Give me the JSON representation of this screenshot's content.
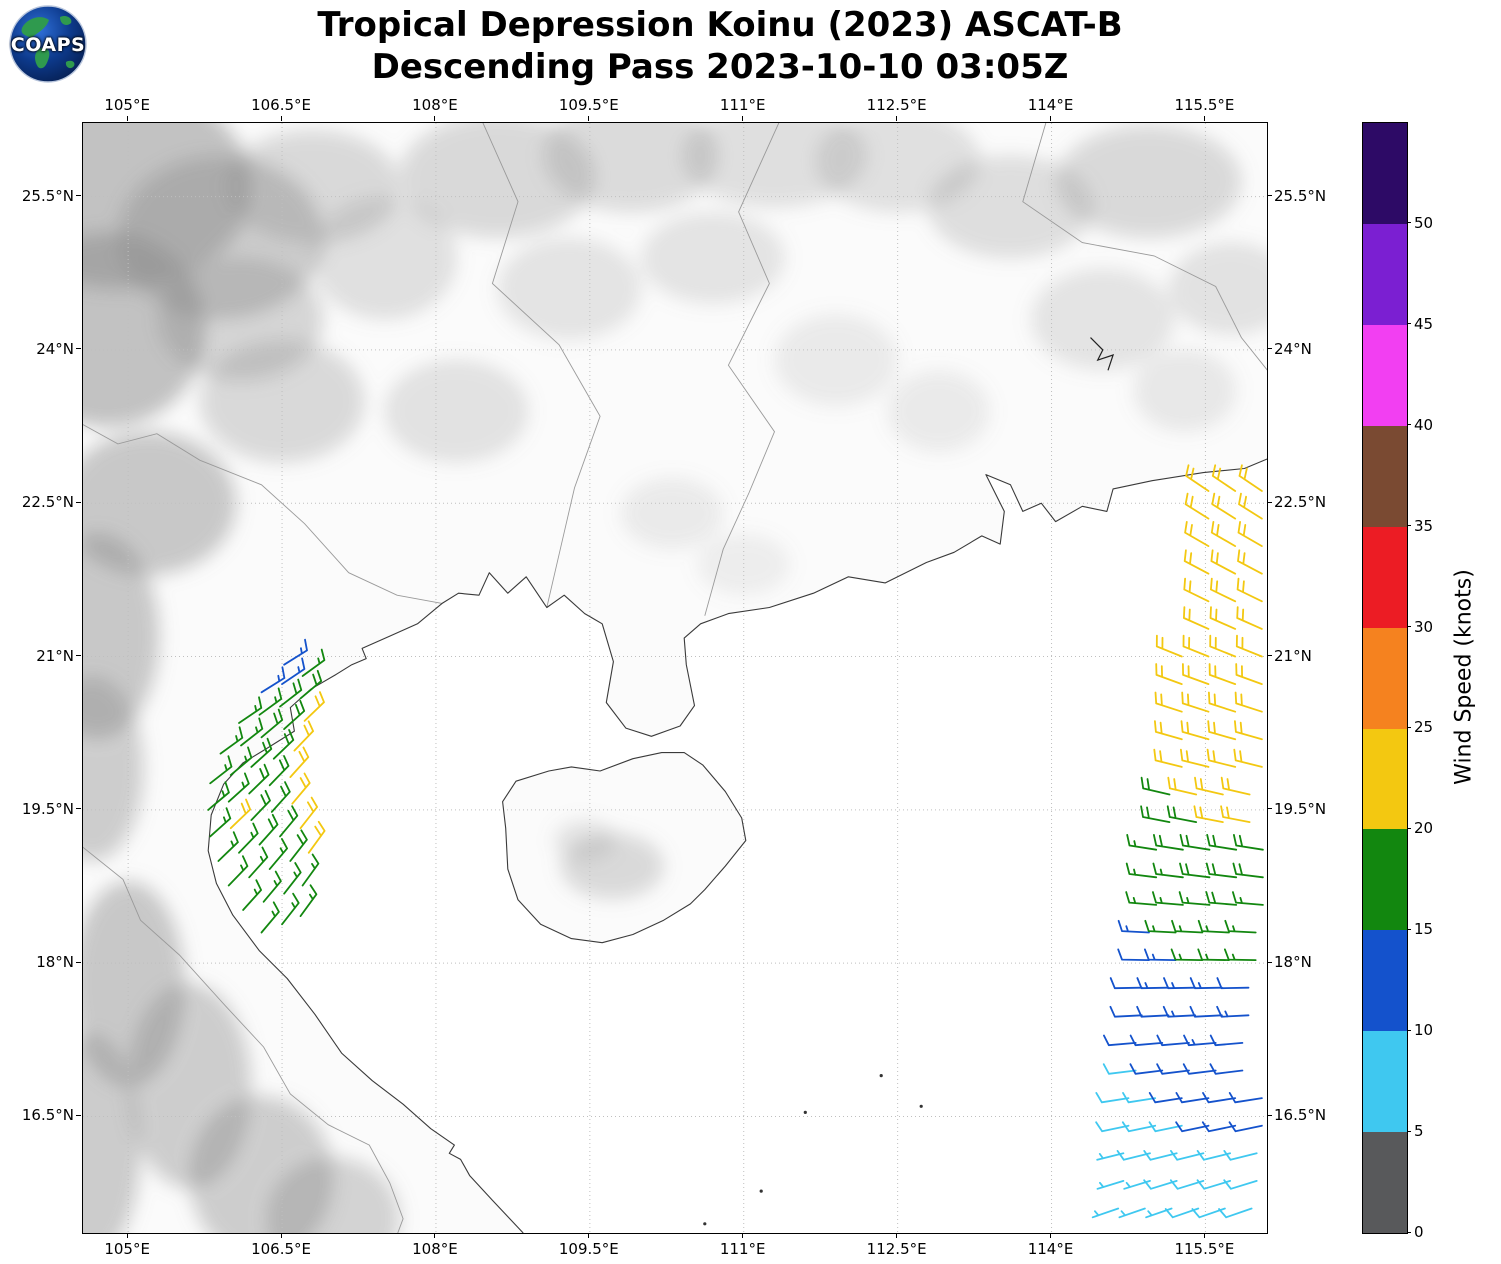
{
  "logo": {
    "text": "COAPS"
  },
  "title": {
    "line1": "Tropical Depression Koinu (2023) ASCAT-B",
    "line2": "Descending Pass 2023-10-10 03:05Z"
  },
  "chart_data": {
    "type": "map-windbarbs",
    "title": "Tropical Depression Koinu (2023) ASCAT-B Descending Pass 2023-10-10 03:05Z",
    "extent": {
      "lon_min": 104.56,
      "lon_max": 116.1,
      "lat_min": 15.36,
      "lat_max": 26.22
    },
    "grid": true,
    "x_ticks": [
      {
        "lon": 105.0,
        "label": "105°E"
      },
      {
        "lon": 106.5,
        "label": "106.5°E"
      },
      {
        "lon": 108.0,
        "label": "108°E"
      },
      {
        "lon": 109.5,
        "label": "109.5°E"
      },
      {
        "lon": 111.0,
        "label": "111°E"
      },
      {
        "lon": 112.5,
        "label": "112.5°E"
      },
      {
        "lon": 114.0,
        "label": "114°E"
      },
      {
        "lon": 115.5,
        "label": "115.5°E"
      }
    ],
    "y_ticks": [
      {
        "lat": 25.5,
        "label": "25.5°N"
      },
      {
        "lat": 24.0,
        "label": "24°N"
      },
      {
        "lat": 22.5,
        "label": "22.5°N"
      },
      {
        "lat": 21.0,
        "label": "21°N"
      },
      {
        "lat": 19.5,
        "label": "19.5°N"
      },
      {
        "lat": 18.0,
        "label": "18°N"
      },
      {
        "lat": 16.5,
        "label": "16.5°N"
      }
    ],
    "colorbar": {
      "label": "Wind Speed (knots)",
      "tick_values": [
        0,
        5,
        10,
        15,
        20,
        25,
        30,
        35,
        40,
        45,
        50
      ],
      "segment_bounds": [
        0,
        5,
        10,
        15,
        20,
        25,
        30,
        35,
        40,
        45,
        50,
        55
      ],
      "segment_colors": [
        "#58595b",
        "#3fc8f0",
        "#1452cc",
        "#12870f",
        "#f3c811",
        "#f5821f",
        "#ec1c24",
        "#7a4a32",
        "#f23ff2",
        "#7b1fd2",
        "#2d0a66"
      ]
    },
    "wind_units": "knots",
    "left_swath": {
      "flip": false,
      "barbs": [
        [
          106.3,
          18.3,
          40,
          15
        ],
        [
          106.5,
          18.38,
          38,
          15
        ],
        [
          106.68,
          18.46,
          36,
          15
        ],
        [
          106.12,
          18.52,
          42,
          15
        ],
        [
          106.32,
          18.6,
          40,
          15
        ],
        [
          106.52,
          18.68,
          38,
          15
        ],
        [
          106.7,
          18.76,
          36,
          15
        ],
        [
          105.98,
          18.76,
          44,
          15
        ],
        [
          106.18,
          18.84,
          42,
          15
        ],
        [
          106.38,
          18.92,
          40,
          15
        ],
        [
          106.58,
          19.0,
          38,
          18
        ],
        [
          106.76,
          19.08,
          36,
          20
        ],
        [
          105.88,
          19.0,
          46,
          15
        ],
        [
          106.08,
          19.08,
          44,
          15
        ],
        [
          106.28,
          19.16,
          42,
          18
        ],
        [
          106.48,
          19.24,
          40,
          18
        ],
        [
          106.68,
          19.32,
          38,
          20
        ],
        [
          105.8,
          19.24,
          48,
          15
        ],
        [
          106.0,
          19.32,
          46,
          20
        ],
        [
          106.2,
          19.4,
          44,
          18
        ],
        [
          106.4,
          19.48,
          42,
          18
        ],
        [
          106.6,
          19.56,
          40,
          20
        ],
        [
          105.78,
          19.5,
          50,
          15
        ],
        [
          105.98,
          19.58,
          48,
          15
        ],
        [
          106.18,
          19.66,
          46,
          18
        ],
        [
          106.38,
          19.74,
          44,
          18
        ],
        [
          106.58,
          19.82,
          42,
          20
        ],
        [
          105.8,
          19.76,
          52,
          15
        ],
        [
          106.0,
          19.84,
          50,
          15
        ],
        [
          106.2,
          19.92,
          48,
          18
        ],
        [
          106.42,
          20.0,
          46,
          18
        ],
        [
          106.62,
          20.08,
          44,
          20
        ],
        [
          105.9,
          20.05,
          54,
          15
        ],
        [
          106.1,
          20.13,
          52,
          15
        ],
        [
          106.3,
          20.21,
          50,
          18
        ],
        [
          106.52,
          20.29,
          48,
          18
        ],
        [
          106.72,
          20.37,
          46,
          20
        ],
        [
          106.08,
          20.35,
          56,
          15
        ],
        [
          106.28,
          20.43,
          54,
          15
        ],
        [
          106.48,
          20.51,
          52,
          18
        ],
        [
          106.68,
          20.59,
          50,
          18
        ],
        [
          106.3,
          20.65,
          58,
          13
        ],
        [
          106.5,
          20.73,
          56,
          13
        ],
        [
          106.7,
          20.81,
          54,
          15
        ],
        [
          106.52,
          20.92,
          58,
          13
        ]
      ]
    },
    "right_swath": {
      "flip": true,
      "rows": [
        {
          "lat": 22.62,
          "dir": 304,
          "lons": [
            115.53,
            115.79,
            116.05
          ],
          "spds": [
            20,
            20,
            20
          ]
        },
        {
          "lat": 22.35,
          "dir": 302,
          "lons": [
            115.53,
            115.79,
            116.05
          ],
          "spds": [
            20,
            22,
            20
          ]
        },
        {
          "lat": 22.08,
          "dir": 300,
          "lons": [
            115.53,
            115.79,
            116.05
          ],
          "spds": [
            20,
            20,
            20
          ]
        },
        {
          "lat": 21.81,
          "dir": 298,
          "lons": [
            115.53,
            115.79,
            116.05
          ],
          "spds": [
            22,
            20,
            20
          ]
        },
        {
          "lat": 21.54,
          "dir": 296,
          "lons": [
            115.53,
            115.79,
            116.05
          ],
          "spds": [
            20,
            20,
            22
          ]
        },
        {
          "lat": 21.27,
          "dir": 294,
          "lons": [
            115.53,
            115.79,
            116.05
          ],
          "spds": [
            20,
            22,
            20
          ]
        },
        {
          "lat": 21.0,
          "dir": 292,
          "lons": [
            115.27,
            115.53,
            115.79,
            116.05
          ],
          "spds": [
            20,
            20,
            20,
            20
          ]
        },
        {
          "lat": 20.73,
          "dir": 290,
          "lons": [
            115.27,
            115.53,
            115.79,
            116.05
          ],
          "spds": [
            20,
            20,
            22,
            20
          ]
        },
        {
          "lat": 20.46,
          "dir": 288,
          "lons": [
            115.27,
            115.53,
            115.79,
            116.05
          ],
          "spds": [
            20,
            20,
            20,
            20
          ]
        },
        {
          "lat": 20.19,
          "dir": 286,
          "lons": [
            115.27,
            115.53,
            115.79,
            116.05
          ],
          "spds": [
            20,
            22,
            20,
            20
          ]
        },
        {
          "lat": 19.92,
          "dir": 284,
          "lons": [
            115.27,
            115.53,
            115.79,
            116.05
          ],
          "spds": [
            20,
            20,
            20,
            22
          ]
        },
        {
          "lat": 19.65,
          "dir": 283,
          "lons": [
            115.15,
            115.41,
            115.67,
            115.93
          ],
          "spds": [
            18,
            20,
            20,
            20
          ]
        },
        {
          "lat": 19.38,
          "dir": 281,
          "lons": [
            115.15,
            115.41,
            115.67,
            115.93
          ],
          "spds": [
            18,
            18,
            20,
            20
          ]
        },
        {
          "lat": 19.11,
          "dir": 279,
          "lons": [
            115.02,
            115.28,
            115.54,
            115.8,
            116.06
          ],
          "spds": [
            15,
            18,
            18,
            18,
            18
          ]
        },
        {
          "lat": 18.84,
          "dir": 277,
          "lons": [
            115.02,
            115.28,
            115.54,
            115.8,
            116.06
          ],
          "spds": [
            15,
            15,
            18,
            18,
            18
          ]
        },
        {
          "lat": 18.57,
          "dir": 275,
          "lons": [
            115.02,
            115.28,
            115.54,
            115.8,
            116.06
          ],
          "spds": [
            15,
            15,
            15,
            18,
            15
          ]
        },
        {
          "lat": 18.3,
          "dir": 273,
          "lons": [
            114.95,
            115.21,
            115.47,
            115.73,
            115.99
          ],
          "spds": [
            13,
            15,
            15,
            15,
            15
          ]
        },
        {
          "lat": 18.03,
          "dir": 271,
          "lons": [
            114.95,
            115.21,
            115.47,
            115.73,
            115.99
          ],
          "spds": [
            12,
            13,
            15,
            15,
            15
          ]
        },
        {
          "lat": 17.76,
          "dir": 269,
          "lons": [
            114.88,
            115.14,
            115.4,
            115.66,
            115.92
          ],
          "spds": [
            12,
            13,
            13,
            13,
            12
          ]
        },
        {
          "lat": 17.49,
          "dir": 267,
          "lons": [
            114.88,
            115.14,
            115.4,
            115.66,
            115.92
          ],
          "spds": [
            12,
            12,
            13,
            12,
            13
          ]
        },
        {
          "lat": 17.22,
          "dir": 265,
          "lons": [
            114.82,
            115.08,
            115.34,
            115.6,
            115.86
          ],
          "spds": [
            10,
            12,
            12,
            13,
            12
          ]
        },
        {
          "lat": 16.95,
          "dir": 263,
          "lons": [
            114.82,
            115.08,
            115.34,
            115.6,
            115.86
          ],
          "spds": [
            8,
            10,
            12,
            12,
            12
          ]
        },
        {
          "lat": 16.68,
          "dir": 261,
          "lons": [
            114.75,
            115.01,
            115.27,
            115.53,
            115.79,
            116.05
          ],
          "spds": [
            8,
            8,
            10,
            10,
            12,
            10
          ]
        },
        {
          "lat": 16.41,
          "dir": 258,
          "lons": [
            114.75,
            115.01,
            115.27,
            115.53,
            115.79,
            116.05
          ],
          "spds": [
            8,
            8,
            8,
            10,
            10,
            10
          ]
        },
        {
          "lat": 16.14,
          "dir": 256,
          "lons": [
            114.7,
            114.96,
            115.22,
            115.48,
            115.74,
            116.0
          ],
          "spds": [
            7,
            8,
            8,
            8,
            8,
            8
          ]
        },
        {
          "lat": 15.87,
          "dir": 253,
          "lons": [
            114.7,
            114.96,
            115.22,
            115.48,
            115.74,
            116.0
          ],
          "spds": [
            7,
            7,
            8,
            8,
            8,
            8
          ]
        },
        {
          "lat": 15.6,
          "dir": 251,
          "lons": [
            114.65,
            114.91,
            115.17,
            115.43,
            115.69,
            115.95
          ],
          "spds": [
            7,
            7,
            7,
            8,
            8,
            8
          ]
        }
      ]
    }
  }
}
